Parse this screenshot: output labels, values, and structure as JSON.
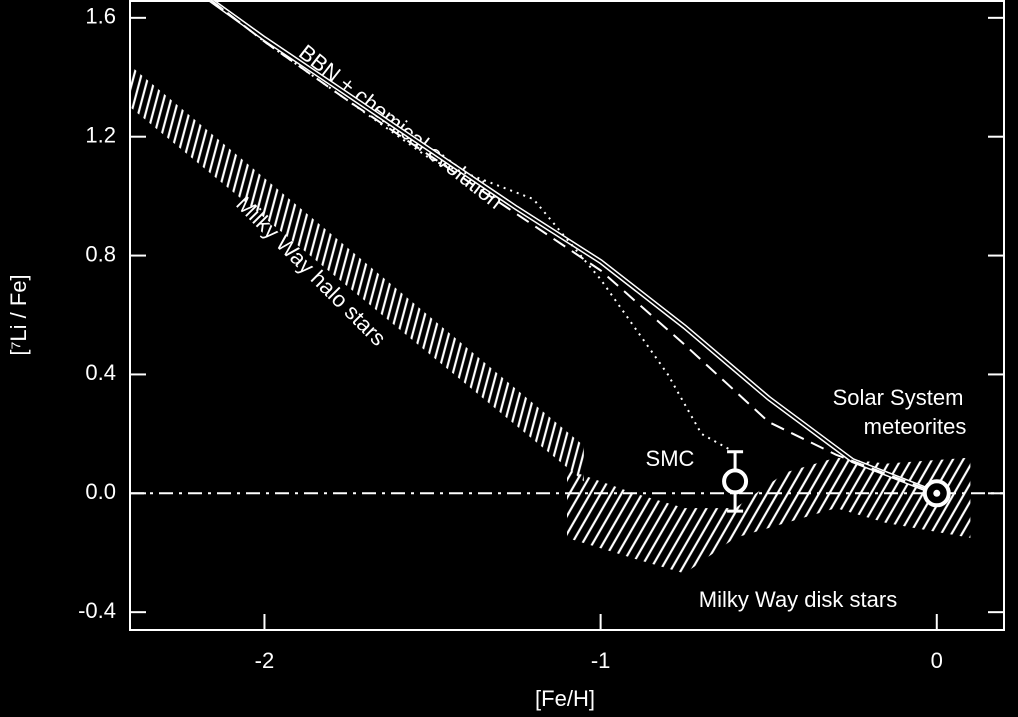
{
  "chart_data": {
    "type": "line",
    "x_label": "[Fe/H]",
    "y_label": "[⁷Li / Fe]",
    "xlim": [
      -2.4,
      0.2
    ],
    "ylim": [
      -0.46,
      1.66
    ],
    "xticks": [
      -2,
      -1,
      0
    ],
    "yticks": [
      {
        "value": -0.4,
        "label": "-0.4"
      },
      {
        "value": 0,
        "label": "0.0"
      },
      0.4,
      0.8,
      1.2,
      1.6
    ],
    "reference_y": 0,
    "series": [
      {
        "name": "BBN + chemical evolution",
        "style": "double",
        "x": [
          -2.16,
          -2.0,
          -1.75,
          -1.5,
          -1.25,
          -1.0,
          -0.75,
          -0.5,
          -0.25,
          0.0
        ],
        "values": [
          1.66,
          1.53,
          1.34,
          1.15,
          0.96,
          0.78,
          0.56,
          0.32,
          0.11,
          0.0
        ]
      },
      {
        "style": "dashed",
        "x": [
          -2.16,
          -2.0,
          -1.75,
          -1.5,
          -1.25,
          -1.0,
          -0.75,
          -0.5,
          -0.3,
          0.0
        ],
        "values": [
          1.66,
          1.52,
          1.32,
          1.13,
          0.94,
          0.75,
          0.5,
          0.24,
          0.13,
          0.0
        ]
      },
      {
        "style": "dotted",
        "x": [
          -2.16,
          -2.0,
          -1.75,
          -1.5,
          -1.2,
          -1.0,
          -0.8,
          -0.7,
          -0.62
        ],
        "values": [
          1.66,
          1.52,
          1.32,
          1.12,
          0.99,
          0.72,
          0.4,
          0.2,
          0.15
        ]
      }
    ],
    "bands": [
      {
        "name": "Milky Way halo stars",
        "hatch": "vertical",
        "x": [
          -2.4,
          -1.05
        ],
        "lower": [
          1.3,
          0.04
        ],
        "upper": [
          1.44,
          0.16
        ]
      },
      {
        "name": "Milky Way disk stars",
        "hatch": "diagonal",
        "x": [
          -1.1,
          -0.9,
          -0.75,
          -0.6,
          -0.45,
          -0.3,
          -0.15,
          0.1
        ],
        "lower": [
          -0.15,
          -0.22,
          -0.27,
          -0.15,
          -0.1,
          -0.05,
          -0.1,
          -0.15
        ],
        "upper": [
          0.08,
          0.0,
          -0.05,
          -0.05,
          0.07,
          0.12,
          0.1,
          0.12
        ]
      }
    ],
    "points": [
      {
        "name": "SMC",
        "x": -0.6,
        "y": 0.04,
        "error": 0.1
      },
      {
        "x": 0.0,
        "y": 0.0
      }
    ],
    "annotations": [
      "Solar System",
      "meteorites"
    ]
  }
}
